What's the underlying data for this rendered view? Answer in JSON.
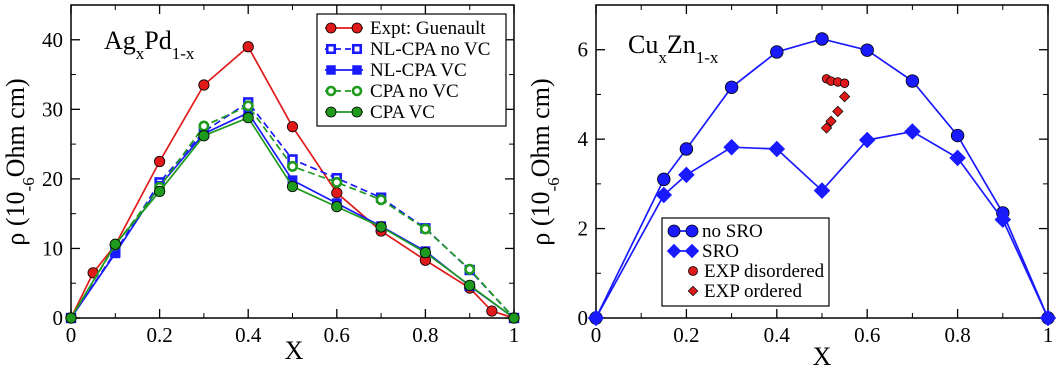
{
  "chart_data": [
    {
      "type": "line",
      "title_parts": [
        [
          "Ag",
          false
        ],
        [
          "x",
          true
        ],
        [
          "Pd",
          false
        ],
        [
          "1-x",
          true
        ]
      ],
      "xlabel": "X",
      "ylabel_parts": [
        [
          "ρ (10",
          false
        ],
        [
          "-6",
          true
        ],
        [
          "Ohm cm)",
          false
        ]
      ],
      "xlim": [
        0,
        1
      ],
      "ylim": [
        0,
        45
      ],
      "xticks": [
        0,
        0.2,
        0.4,
        0.6,
        0.8,
        1
      ],
      "xtick_labels": [
        "0",
        "0.2",
        "0.4",
        "0.6",
        "0.8",
        "1"
      ],
      "yticks": [
        0,
        10,
        20,
        30,
        40
      ],
      "ytick_labels": [
        "0",
        "10",
        "20",
        "30",
        "40"
      ],
      "legend_position": "top-right",
      "series": [
        {
          "name": "Expt: Guenault",
          "color": "#e01a1a",
          "marker": "circle",
          "filled": true,
          "dashed": false,
          "x": [
            0,
            0.05,
            0.1,
            0.2,
            0.3,
            0.4,
            0.5,
            0.6,
            0.7,
            0.8,
            0.9,
            0.95,
            1
          ],
          "y": [
            0,
            6.5,
            10.5,
            22.5,
            33.5,
            39,
            27.5,
            18,
            12.5,
            8.3,
            4.3,
            1,
            0
          ]
        },
        {
          "name": "NL-CPA no VC",
          "color": "#1a1aff",
          "marker": "square",
          "filled": false,
          "dashed": true,
          "x": [
            0,
            0.1,
            0.2,
            0.3,
            0.4,
            0.5,
            0.6,
            0.7,
            0.8,
            0.9,
            1
          ],
          "y": [
            0,
            9.5,
            19.5,
            26.8,
            31,
            22.8,
            20.1,
            17.3,
            12.9,
            6.9,
            0
          ]
        },
        {
          "name": "NL-CPA VC",
          "color": "#1a1aff",
          "marker": "square",
          "filled": true,
          "dashed": false,
          "x": [
            0,
            0.1,
            0.2,
            0.3,
            0.4,
            0.5,
            0.6,
            0.7,
            0.8,
            0.9,
            1
          ],
          "y": [
            0,
            9.3,
            19,
            26.5,
            29.5,
            19.8,
            16.5,
            13.2,
            9.6,
            4.6,
            0
          ]
        },
        {
          "name": "CPA no VC",
          "color": "#1e9a1e",
          "marker": "circle",
          "filled": false,
          "dashed": true,
          "x": [
            0,
            0.1,
            0.2,
            0.3,
            0.4,
            0.5,
            0.6,
            0.7,
            0.8,
            0.9,
            1
          ],
          "y": [
            0,
            10.5,
            18.8,
            27.6,
            30.5,
            21.8,
            19.5,
            17,
            12.8,
            7,
            0
          ]
        },
        {
          "name": "CPA VC",
          "color": "#1e9a1e",
          "marker": "circle",
          "filled": true,
          "dashed": false,
          "x": [
            0,
            0.1,
            0.2,
            0.3,
            0.4,
            0.5,
            0.6,
            0.7,
            0.8,
            0.9,
            1
          ],
          "y": [
            0,
            10.6,
            18.2,
            26.2,
            28.8,
            18.9,
            16,
            13.1,
            9.4,
            4.7,
            0
          ]
        }
      ]
    },
    {
      "type": "line",
      "title_parts": [
        [
          "Cu",
          false
        ],
        [
          "x",
          true
        ],
        [
          "Zn",
          false
        ],
        [
          "1-x",
          true
        ]
      ],
      "xlabel": "X",
      "ylabel_parts": [
        [
          "ρ (10",
          false
        ],
        [
          "-6",
          true
        ],
        [
          "Ohm cm)",
          false
        ]
      ],
      "xlim": [
        0,
        1
      ],
      "ylim": [
        0,
        7
      ],
      "xticks": [
        0,
        0.2,
        0.4,
        0.6,
        0.8,
        1
      ],
      "xtick_labels": [
        "0",
        "0.2",
        "0.4",
        "0.6",
        "0.8",
        "1"
      ],
      "yticks": [
        0,
        2,
        4,
        6
      ],
      "ytick_labels": [
        "0",
        "2",
        "4",
        "6"
      ],
      "legend_position": "bottom-left",
      "series": [
        {
          "name": "no SRO",
          "color": "#1a1aff",
          "marker": "circle",
          "filled": true,
          "dashed": false,
          "line": true,
          "x": [
            0,
            0.15,
            0.2,
            0.3,
            0.4,
            0.5,
            0.6,
            0.7,
            0.8,
            0.9,
            1
          ],
          "y": [
            0,
            3.1,
            3.78,
            5.16,
            5.95,
            6.24,
            5.99,
            5.3,
            4.08,
            2.35,
            0
          ]
        },
        {
          "name": "SRO",
          "color": "#1a1aff",
          "marker": "diamond",
          "filled": true,
          "dashed": false,
          "line": true,
          "x": [
            0,
            0.15,
            0.2,
            0.3,
            0.4,
            0.5,
            0.6,
            0.7,
            0.8,
            0.9,
            1
          ],
          "y": [
            0,
            2.75,
            3.2,
            3.82,
            3.78,
            2.85,
            3.98,
            4.17,
            3.58,
            2.2,
            0
          ]
        },
        {
          "name": "EXP disordered",
          "color": "#e01a1a",
          "marker": "circle",
          "filled": true,
          "dashed": false,
          "line": false,
          "x": [
            0.51,
            0.52,
            0.535,
            0.55
          ],
          "y": [
            5.35,
            5.3,
            5.28,
            5.25
          ]
        },
        {
          "name": "EXP ordered",
          "color": "#e01a1a",
          "marker": "diamond",
          "filled": true,
          "dashed": false,
          "line": false,
          "x": [
            0.51,
            0.52,
            0.535,
            0.55
          ],
          "y": [
            4.25,
            4.4,
            4.62,
            4.95
          ]
        }
      ]
    }
  ]
}
